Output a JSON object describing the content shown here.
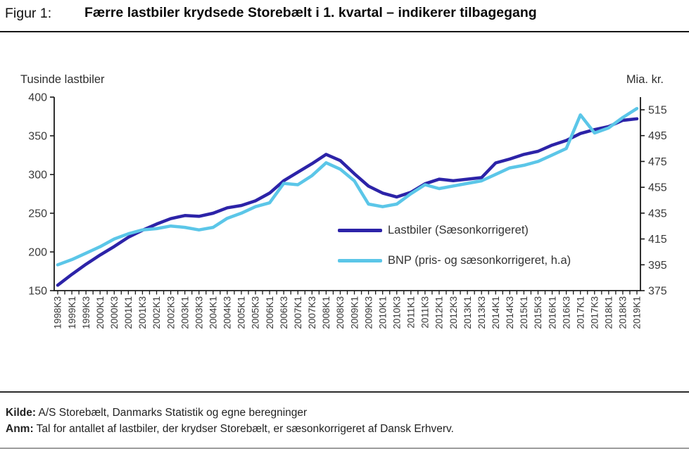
{
  "header": {
    "figure_label": "Figur 1:",
    "title": "Færre lastbiler krydsede Storebælt i 1. kvartal – indikerer tilbagegang"
  },
  "chart_data": {
    "type": "line",
    "title": "Færre lastbiler krydsede Storebælt i 1. kvartal – indikerer tilbagegang",
    "left_axis": {
      "title": "Tusinde lastbiler",
      "ticks": [
        150,
        200,
        250,
        300,
        350,
        400
      ],
      "range": [
        150,
        400
      ]
    },
    "right_axis": {
      "title": "Mia. kr.",
      "ticks": [
        375,
        395,
        415,
        435,
        455,
        475,
        495,
        515
      ],
      "range": [
        375,
        525
      ]
    },
    "minor_x_ticks_per_label": 2,
    "legend_position": "inside-center",
    "grid": false,
    "categories": [
      "1998K3",
      "1999K1",
      "1999K3",
      "2000K1",
      "2000K3",
      "2001K1",
      "2001K3",
      "2002K1",
      "2002K3",
      "2003K1",
      "2003K3",
      "2004K1",
      "2004K3",
      "2005K1",
      "2005K3",
      "2006K1",
      "2006K3",
      "2007K1",
      "2007K3",
      "2008K1",
      "2008K3",
      "2009K1",
      "2009K3",
      "2010K1",
      "2010K3",
      "2011K1",
      "2011K3",
      "2012K1",
      "2012K3",
      "2013K1",
      "2013K3",
      "2014K1",
      "2014K3",
      "2015K1",
      "2015K3",
      "2016K1",
      "2016K3",
      "2017K1",
      "2017K3",
      "2018K1",
      "2018K3",
      "2019K1"
    ],
    "series": [
      {
        "name": "Lastbiler (Sæsonkorrigeret)",
        "axis": "left",
        "color": "#2c23a8",
        "values": [
          157,
          171,
          184,
          196,
          207,
          219,
          228,
          236,
          243,
          247,
          246,
          250,
          257,
          260,
          266,
          276,
          292,
          303,
          314,
          326,
          318,
          301,
          285,
          276,
          271,
          277,
          288,
          294,
          292,
          294,
          296,
          315,
          320,
          326,
          330,
          338,
          344,
          353,
          358,
          362,
          370,
          372
        ]
      },
      {
        "name": "BNP (pris- og sæsonkorrigeret, h.a)",
        "axis": "right",
        "color": "#5bc6e8",
        "values": [
          395,
          399,
          404,
          409,
          415,
          419,
          422,
          423,
          425,
          424,
          422,
          424,
          431,
          435,
          440,
          443,
          458,
          457,
          464,
          474,
          469,
          460,
          442,
          440,
          442,
          450,
          457,
          454,
          456,
          458,
          460,
          465,
          470,
          472,
          475,
          480,
          485,
          511,
          497,
          501,
          509,
          516
        ]
      }
    ]
  },
  "footer": {
    "kilde_label": "Kilde:",
    "kilde_text": " A/S Storebælt, Danmarks Statistik og egne beregninger",
    "anm_label": "Anm:",
    "anm_text": " Tal for antallet af lastbiler, der krydser Storebælt, er sæsonkorrigeret af Dansk Erhverv."
  }
}
